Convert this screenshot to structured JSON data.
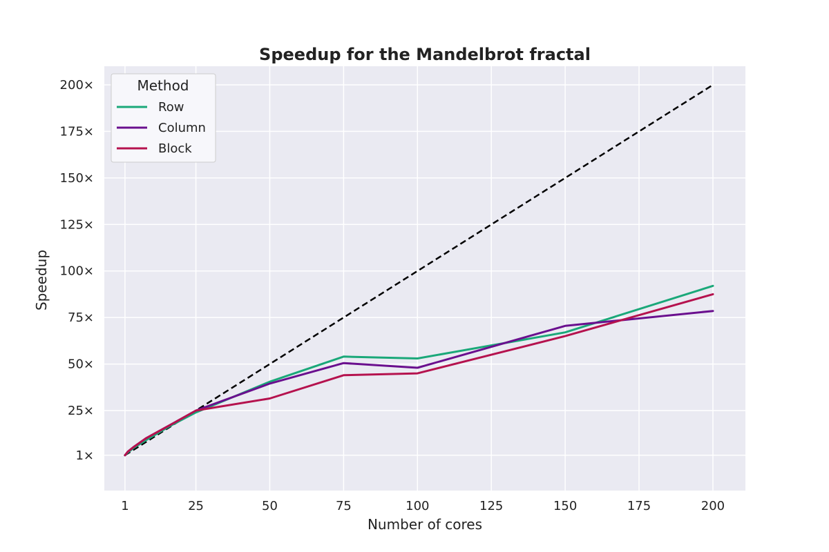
{
  "chart_data": {
    "type": "line",
    "title": "Speedup for the Mandelbrot fractal",
    "xlabel": "Number of cores",
    "ylabel": "Speedup",
    "xlim": [
      -6,
      211
    ],
    "ylim": [
      -18,
      210
    ],
    "x_ticks": [
      1,
      25,
      50,
      75,
      100,
      125,
      150,
      175,
      200
    ],
    "x_tick_labels": [
      "1",
      "25",
      "50",
      "75",
      "100",
      "125",
      "150",
      "175",
      "200"
    ],
    "y_ticks": [
      1,
      25,
      50,
      75,
      100,
      125,
      150,
      175,
      200
    ],
    "y_tick_labels": [
      "1×",
      "25×",
      "50×",
      "75×",
      "100×",
      "125×",
      "150×",
      "175×",
      "200×"
    ],
    "grid": true,
    "legend": {
      "title": "Method",
      "placement": "top-left"
    },
    "series": [
      {
        "name": "Row",
        "color": "#1aa879",
        "x": [
          1,
          2,
          4,
          8,
          16,
          25,
          50,
          75,
          100,
          150,
          200
        ],
        "y": [
          1,
          2.5,
          5,
          9,
          16.5,
          24,
          40.5,
          54,
          53,
          67,
          92
        ]
      },
      {
        "name": "Column",
        "color": "#6a0f8e",
        "x": [
          1,
          2,
          4,
          8,
          16,
          25,
          50,
          75,
          100,
          150,
          200
        ],
        "y": [
          1,
          3,
          5.5,
          10,
          17,
          25,
          39.5,
          50.5,
          48,
          70.5,
          78.5
        ]
      },
      {
        "name": "Block",
        "color": "#b5124e",
        "x": [
          1,
          2,
          4,
          8,
          16,
          25,
          50,
          75,
          100,
          150,
          200
        ],
        "y": [
          1,
          3,
          5.5,
          10,
          17,
          25,
          31.5,
          44,
          45,
          65,
          87.5
        ]
      }
    ],
    "reference_line": {
      "style": "dashed",
      "color": "#000000",
      "x": [
        1,
        200
      ],
      "y": [
        1,
        200
      ]
    }
  }
}
